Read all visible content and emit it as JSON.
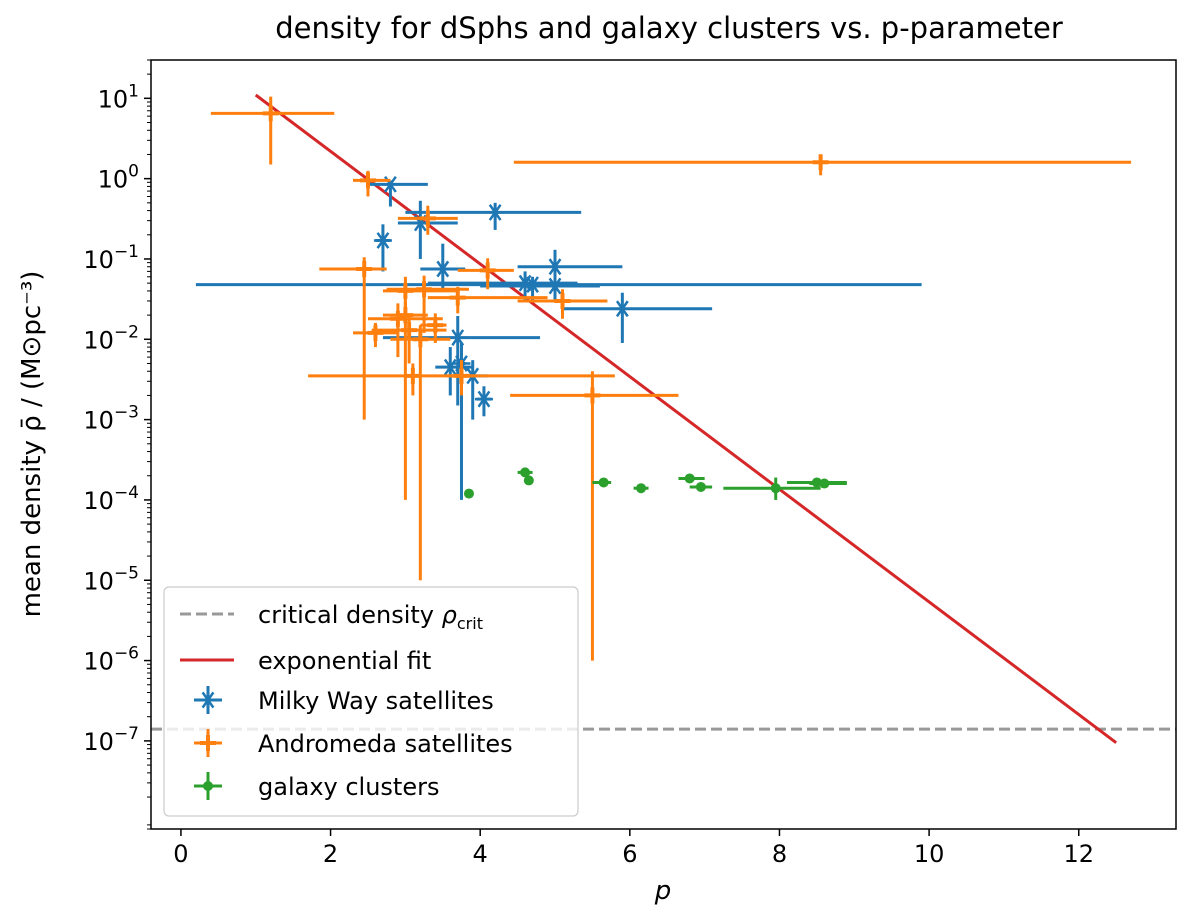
{
  "chart_data": {
    "type": "scatter",
    "title": "density for dSphs and galaxy clusters vs. p-parameter",
    "xlabel": "p",
    "ylabel": "mean density ρ̄ / (M⊙pc⁻³)",
    "xlim": [
      -0.4,
      13.3
    ],
    "ylim": [
      8e-09,
      30
    ],
    "yscale": "log",
    "x_ticks": [
      0,
      2,
      4,
      6,
      8,
      10,
      12
    ],
    "y_tick_exponents": [
      -7,
      -6,
      -5,
      -4,
      -3,
      -2,
      -1,
      0,
      1
    ],
    "y_tick_base": "10",
    "legend_position": "lower-left",
    "critical_density": {
      "label": "critical density ρcrit",
      "label_main": "critical density ",
      "label_symbol": "ρ",
      "label_sub": "crit",
      "value": 1.4e-07,
      "color": "#999999"
    },
    "fit": {
      "label": "exponential fit",
      "x": [
        1.0,
        12.5
      ],
      "y": [
        11.0,
        9.5e-08
      ],
      "color": "#d62728"
    },
    "series": [
      {
        "name": "Milky Way satellites",
        "marker": "asterisk",
        "color": "#1f77b4",
        "points": [
          {
            "x": 2.8,
            "y": 0.85,
            "xerr": [
              0.3,
              0.5
            ],
            "yerr": [
              0.4,
              0.1
            ]
          },
          {
            "x": 2.7,
            "y": 0.17,
            "xerr": [
              0.1,
              0.1
            ],
            "yerr": [
              0.1,
              0.1
            ]
          },
          {
            "x": 3.2,
            "y": 0.28,
            "xerr": [
              0.3,
              0.5
            ],
            "yerr": [
              0.18,
              0.25
            ]
          },
          {
            "x": 4.2,
            "y": 0.38,
            "xerr": [
              1.2,
              1.15
            ],
            "yerr": [
              0.15,
              0.12
            ]
          },
          {
            "x": 3.5,
            "y": 0.075,
            "xerr": [
              0.3,
              0.3
            ],
            "yerr": [
              0.035,
              0.08
            ]
          },
          {
            "x": 5.0,
            "y": 0.08,
            "xerr": [
              0.5,
              0.9
            ],
            "yerr": [
              0.035,
              0.05
            ]
          },
          {
            "x": 4.6,
            "y": 0.05,
            "xerr": [
              1.3,
              0.7
            ],
            "yerr": [
              0.02,
              0.02
            ]
          },
          {
            "x": 4.7,
            "y": 0.048,
            "xerr": [
              4.5,
              5.2
            ],
            "yerr": [
              0.018,
              0.012
            ]
          },
          {
            "x": 5.0,
            "y": 0.046,
            "xerr": [
              1.0,
              0.6
            ],
            "yerr": [
              0.016,
              0.012
            ]
          },
          {
            "x": 5.9,
            "y": 0.024,
            "xerr": [
              0.8,
              1.2
            ],
            "yerr": [
              0.015,
              0.014
            ]
          },
          {
            "x": 3.7,
            "y": 0.0105,
            "xerr": [
              1.0,
              1.1
            ],
            "yerr": [
              0.009,
              0.009
            ]
          },
          {
            "x": 3.6,
            "y": 0.0045,
            "xerr": [
              0.2,
              0.3
            ],
            "yerr": [
              0.0025,
              0.0035
            ]
          },
          {
            "x": 3.9,
            "y": 0.0035,
            "xerr": [
              0.3,
              0.2
            ],
            "yerr": [
              0.0025,
              0.002
            ]
          },
          {
            "x": 4.05,
            "y": 0.0018,
            "xerr": [
              0.1,
              0.1
            ],
            "yerr": [
              0.0007,
              0.0008
            ]
          },
          {
            "x": 3.75,
            "y": 0.005,
            "xerr": [
              0.05,
              0.05
            ],
            "yerr": [
              0.0049,
              0.004
            ]
          }
        ]
      },
      {
        "name": "Andromeda satellites",
        "marker": "plus",
        "color": "#ff7f0e",
        "points": [
          {
            "x": 1.2,
            "y": 6.5,
            "xerr": [
              0.8,
              0.85
            ],
            "yerr": [
              5.0,
              4.0
            ]
          },
          {
            "x": 8.55,
            "y": 1.6,
            "xerr": [
              4.1,
              4.15
            ],
            "yerr": [
              0.5,
              0.4
            ]
          },
          {
            "x": 2.5,
            "y": 0.95,
            "xerr": [
              0.2,
              0.3
            ],
            "yerr": [
              0.35,
              0.3
            ]
          },
          {
            "x": 3.3,
            "y": 0.32,
            "xerr": [
              0.4,
              0.4
            ],
            "yerr": [
              0.12,
              0.14
            ]
          },
          {
            "x": 2.45,
            "y": 0.075,
            "xerr": [
              0.6,
              0.3
            ],
            "yerr": [
              0.074,
              0.03
            ]
          },
          {
            "x": 4.1,
            "y": 0.072,
            "xerr": [
              0.4,
              0.35
            ],
            "yerr": [
              0.03,
              0.03
            ]
          },
          {
            "x": 3.0,
            "y": 0.04,
            "xerr": [
              0.3,
              0.7
            ],
            "yerr": [
              0.015,
              0.02
            ]
          },
          {
            "x": 3.25,
            "y": 0.042,
            "xerr": [
              0.5,
              0.6
            ],
            "yerr": [
              0.03,
              0.02
            ]
          },
          {
            "x": 3.7,
            "y": 0.033,
            "xerr": [
              0.4,
              1.2
            ],
            "yerr": [
              0.012,
              0.012
            ]
          },
          {
            "x": 5.1,
            "y": 0.03,
            "xerr": [
              0.6,
              0.6
            ],
            "yerr": [
              0.012,
              0.012
            ]
          },
          {
            "x": 3.0,
            "y": 0.02,
            "xerr": [
              0.3,
              0.3
            ],
            "yerr": [
              0.0199,
              0.01
            ]
          },
          {
            "x": 2.9,
            "y": 0.018,
            "xerr": [
              0.4,
              0.6
            ],
            "yerr": [
              0.012,
              0.01
            ]
          },
          {
            "x": 3.05,
            "y": 0.013,
            "xerr": [
              0.5,
              0.5
            ],
            "yerr": [
              0.008,
              0.006
            ]
          },
          {
            "x": 3.4,
            "y": 0.015,
            "xerr": [
              0.2,
              0.15
            ],
            "yerr": [
              0.006,
              0.006
            ]
          },
          {
            "x": 2.6,
            "y": 0.012,
            "xerr": [
              0.3,
              0.3
            ],
            "yerr": [
              0.004,
              0.004
            ]
          },
          {
            "x": 3.2,
            "y": 0.01,
            "xerr": [
              0.4,
              0.4
            ],
            "yerr": [
              0.00999,
              0.005
            ]
          },
          {
            "x": 3.1,
            "y": 0.0035,
            "xerr": [
              1.4,
              2.7
            ],
            "yerr": [
              0.0015,
              0.0015
            ]
          },
          {
            "x": 3.75,
            "y": 0.0035,
            "xerr": [
              0.2,
              0.2
            ],
            "yerr": [
              0.0015,
              0.002
            ]
          },
          {
            "x": 5.5,
            "y": 0.002,
            "xerr": [
              1.1,
              1.15
            ],
            "yerr": [
              0.001999,
              0.002
            ]
          }
        ]
      },
      {
        "name": "galaxy clusters",
        "marker": "dot",
        "color": "#2ca02c",
        "points": [
          {
            "x": 3.85,
            "y": 0.00012,
            "xerr": [
              0.0,
              0.0
            ],
            "yerr": [
              0.0,
              0.0
            ]
          },
          {
            "x": 4.6,
            "y": 0.00022,
            "xerr": [
              0.1,
              0.1
            ],
            "yerr": [
              2e-05,
              2e-05
            ]
          },
          {
            "x": 4.65,
            "y": 0.000175,
            "xerr": [
              0.0,
              0.0
            ],
            "yerr": [
              0.0,
              0.0
            ]
          },
          {
            "x": 5.65,
            "y": 0.000165,
            "xerr": [
              0.15,
              0.1
            ],
            "yerr": [
              0.0,
              0.0
            ]
          },
          {
            "x": 6.15,
            "y": 0.00014,
            "xerr": [
              0.1,
              0.1
            ],
            "yerr": [
              0.0,
              0.0
            ]
          },
          {
            "x": 6.8,
            "y": 0.000185,
            "xerr": [
              0.15,
              0.2
            ],
            "yerr": [
              0.0,
              0.0
            ]
          },
          {
            "x": 6.95,
            "y": 0.000145,
            "xerr": [
              0.15,
              0.15
            ],
            "yerr": [
              0.0,
              0.0
            ]
          },
          {
            "x": 7.95,
            "y": 0.00014,
            "xerr": [
              0.7,
              0.6
            ],
            "yerr": [
              4e-05,
              5e-05
            ]
          },
          {
            "x": 8.5,
            "y": 0.000165,
            "xerr": [
              0.4,
              0.4
            ],
            "yerr": [
              0.0,
              0.0
            ]
          },
          {
            "x": 8.6,
            "y": 0.00016,
            "xerr": [
              0.2,
              0.3
            ],
            "yerr": [
              0.0,
              0.0
            ]
          }
        ]
      }
    ]
  }
}
